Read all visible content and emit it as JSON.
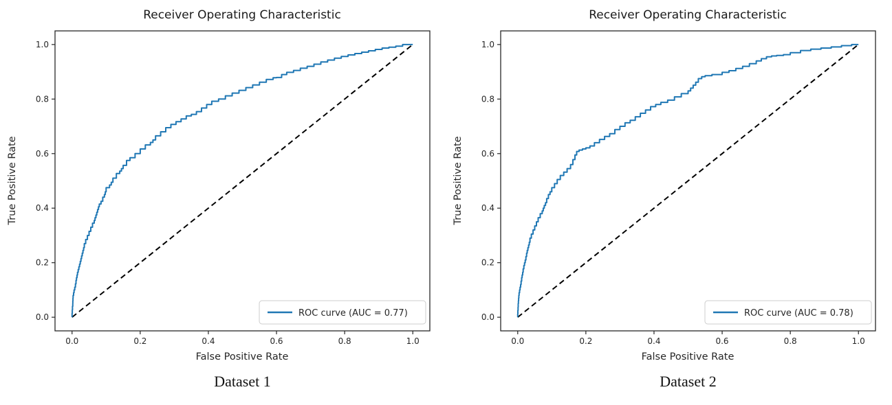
{
  "figure": {
    "background": "#ffffff",
    "text_color": "#262626",
    "spine_color": "#262626",
    "legend_border": "#cccccc"
  },
  "chart_data": [
    {
      "type": "line",
      "title": "Receiver Operating Characteristic",
      "xlabel": "False Positive Rate",
      "ylabel": "True Positive Rate",
      "caption": "Dataset 1",
      "x_ticks": [
        0.0,
        0.2,
        0.4,
        0.6,
        0.8,
        1.0
      ],
      "y_ticks": [
        0.0,
        0.2,
        0.4,
        0.6,
        0.8,
        1.0
      ],
      "xlim": [
        0,
        1
      ],
      "ylim": [
        0,
        1
      ],
      "axes_margin": 0.05,
      "grid": false,
      "legend": {
        "label": "ROC curve (AUC = 0.77)",
        "position": "lower right"
      },
      "auc": 0.77,
      "series": [
        {
          "name": "ROC curve",
          "color": "#1f77b4",
          "style": "solid",
          "points": [
            [
              0,
              0
            ],
            [
              0.002,
              0.04
            ],
            [
              0.003,
              0.07
            ],
            [
              0.006,
              0.09
            ],
            [
              0.01,
              0.11
            ],
            [
              0.013,
              0.135
            ],
            [
              0.016,
              0.155
            ],
            [
              0.02,
              0.175
            ],
            [
              0.024,
              0.195
            ],
            [
              0.028,
              0.215
            ],
            [
              0.032,
              0.235
            ],
            [
              0.036,
              0.255
            ],
            [
              0.04,
              0.27
            ],
            [
              0.045,
              0.285
            ],
            [
              0.05,
              0.3
            ],
            [
              0.055,
              0.315
            ],
            [
              0.06,
              0.33
            ],
            [
              0.065,
              0.345
            ],
            [
              0.07,
              0.365
            ],
            [
              0.075,
              0.385
            ],
            [
              0.08,
              0.405
            ],
            [
              0.09,
              0.425
            ],
            [
              0.095,
              0.44
            ],
            [
              0.1,
              0.46
            ],
            [
              0.11,
              0.475
            ],
            [
              0.12,
              0.495
            ],
            [
              0.13,
              0.51
            ],
            [
              0.14,
              0.527
            ],
            [
              0.15,
              0.545
            ],
            [
              0.16,
              0.557
            ],
            [
              0.17,
              0.575
            ],
            [
              0.185,
              0.585
            ],
            [
              0.2,
              0.6
            ],
            [
              0.215,
              0.617
            ],
            [
              0.23,
              0.632
            ],
            [
              0.245,
              0.65
            ],
            [
              0.26,
              0.665
            ],
            [
              0.275,
              0.68
            ],
            [
              0.29,
              0.695
            ],
            [
              0.305,
              0.707
            ],
            [
              0.32,
              0.717
            ],
            [
              0.335,
              0.727
            ],
            [
              0.35,
              0.738
            ],
            [
              0.365,
              0.744
            ],
            [
              0.38,
              0.754
            ],
            [
              0.395,
              0.767
            ],
            [
              0.41,
              0.78
            ],
            [
              0.43,
              0.792
            ],
            [
              0.45,
              0.8
            ],
            [
              0.47,
              0.812
            ],
            [
              0.49,
              0.822
            ],
            [
              0.51,
              0.832
            ],
            [
              0.53,
              0.842
            ],
            [
              0.55,
              0.852
            ],
            [
              0.57,
              0.862
            ],
            [
              0.59,
              0.872
            ],
            [
              0.6,
              0.878
            ],
            [
              0.615,
              0.879
            ],
            [
              0.63,
              0.89
            ],
            [
              0.65,
              0.898
            ],
            [
              0.67,
              0.905
            ],
            [
              0.69,
              0.913
            ],
            [
              0.71,
              0.92
            ],
            [
              0.73,
              0.928
            ],
            [
              0.75,
              0.936
            ],
            [
              0.77,
              0.943
            ],
            [
              0.79,
              0.95
            ],
            [
              0.81,
              0.956
            ],
            [
              0.83,
              0.962
            ],
            [
              0.85,
              0.967
            ],
            [
              0.87,
              0.972
            ],
            [
              0.89,
              0.977
            ],
            [
              0.91,
              0.982
            ],
            [
              0.93,
              0.987
            ],
            [
              0.95,
              0.99
            ],
            [
              0.97,
              0.994
            ],
            [
              1,
              1
            ]
          ]
        },
        {
          "name": "chance line",
          "color": "#000000",
          "style": "dashed",
          "points": [
            [
              0,
              0
            ],
            [
              1,
              1
            ]
          ]
        }
      ]
    },
    {
      "type": "line",
      "title": "Receiver Operating Characteristic",
      "xlabel": "False Positive Rate",
      "ylabel": "True Positive Rate",
      "caption": "Dataset 2",
      "x_ticks": [
        0.0,
        0.2,
        0.4,
        0.6,
        0.8,
        1.0
      ],
      "y_ticks": [
        0.0,
        0.2,
        0.4,
        0.6,
        0.8,
        1.0
      ],
      "xlim": [
        0,
        1
      ],
      "ylim": [
        0,
        1
      ],
      "axes_margin": 0.05,
      "grid": false,
      "legend": {
        "label": "ROC curve (AUC = 0.78)",
        "position": "lower right"
      },
      "auc": 0.78,
      "series": [
        {
          "name": "ROC curve",
          "color": "#1f77b4",
          "style": "solid",
          "points": [
            [
              0,
              0
            ],
            [
              0.002,
              0.05
            ],
            [
              0.004,
              0.08
            ],
            [
              0.007,
              0.1
            ],
            [
              0.01,
              0.12
            ],
            [
              0.013,
              0.145
            ],
            [
              0.016,
              0.165
            ],
            [
              0.02,
              0.19
            ],
            [
              0.024,
              0.21
            ],
            [
              0.028,
              0.235
            ],
            [
              0.032,
              0.255
            ],
            [
              0.036,
              0.275
            ],
            [
              0.04,
              0.29
            ],
            [
              0.045,
              0.305
            ],
            [
              0.05,
              0.32
            ],
            [
              0.055,
              0.335
            ],
            [
              0.06,
              0.35
            ],
            [
              0.066,
              0.365
            ],
            [
              0.072,
              0.38
            ],
            [
              0.078,
              0.4
            ],
            [
              0.085,
              0.42
            ],
            [
              0.09,
              0.435
            ],
            [
              0.095,
              0.45
            ],
            [
              0.1,
              0.46
            ],
            [
              0.108,
              0.475
            ],
            [
              0.116,
              0.49
            ],
            [
              0.125,
              0.505
            ],
            [
              0.135,
              0.52
            ],
            [
              0.145,
              0.532
            ],
            [
              0.155,
              0.545
            ],
            [
              0.162,
              0.56
            ],
            [
              0.168,
              0.578
            ],
            [
              0.173,
              0.595
            ],
            [
              0.18,
              0.608
            ],
            [
              0.19,
              0.613
            ],
            [
              0.2,
              0.617
            ],
            [
              0.212,
              0.621
            ],
            [
              0.225,
              0.628
            ],
            [
              0.24,
              0.64
            ],
            [
              0.255,
              0.652
            ],
            [
              0.27,
              0.663
            ],
            [
              0.285,
              0.673
            ],
            [
              0.3,
              0.688
            ],
            [
              0.315,
              0.7
            ],
            [
              0.33,
              0.713
            ],
            [
              0.345,
              0.722
            ],
            [
              0.36,
              0.735
            ],
            [
              0.375,
              0.748
            ],
            [
              0.39,
              0.76
            ],
            [
              0.405,
              0.772
            ],
            [
              0.42,
              0.78
            ],
            [
              0.44,
              0.788
            ],
            [
              0.46,
              0.796
            ],
            [
              0.48,
              0.808
            ],
            [
              0.5,
              0.82
            ],
            [
              0.515,
              0.84
            ],
            [
              0.53,
              0.862
            ],
            [
              0.54,
              0.875
            ],
            [
              0.55,
              0.882
            ],
            [
              0.57,
              0.886
            ],
            [
              0.6,
              0.89
            ],
            [
              0.62,
              0.898
            ],
            [
              0.64,
              0.904
            ],
            [
              0.66,
              0.912
            ],
            [
              0.68,
              0.92
            ],
            [
              0.7,
              0.93
            ],
            [
              0.715,
              0.94
            ],
            [
              0.73,
              0.948
            ],
            [
              0.745,
              0.955
            ],
            [
              0.76,
              0.958
            ],
            [
              0.78,
              0.96
            ],
            [
              0.8,
              0.963
            ],
            [
              0.83,
              0.97
            ],
            [
              0.86,
              0.978
            ],
            [
              0.89,
              0.983
            ],
            [
              0.92,
              0.987
            ],
            [
              0.95,
              0.991
            ],
            [
              0.98,
              0.996
            ],
            [
              1,
              1
            ]
          ]
        },
        {
          "name": "chance line",
          "color": "#000000",
          "style": "dashed",
          "points": [
            [
              0,
              0
            ],
            [
              1,
              1
            ]
          ]
        }
      ]
    }
  ]
}
